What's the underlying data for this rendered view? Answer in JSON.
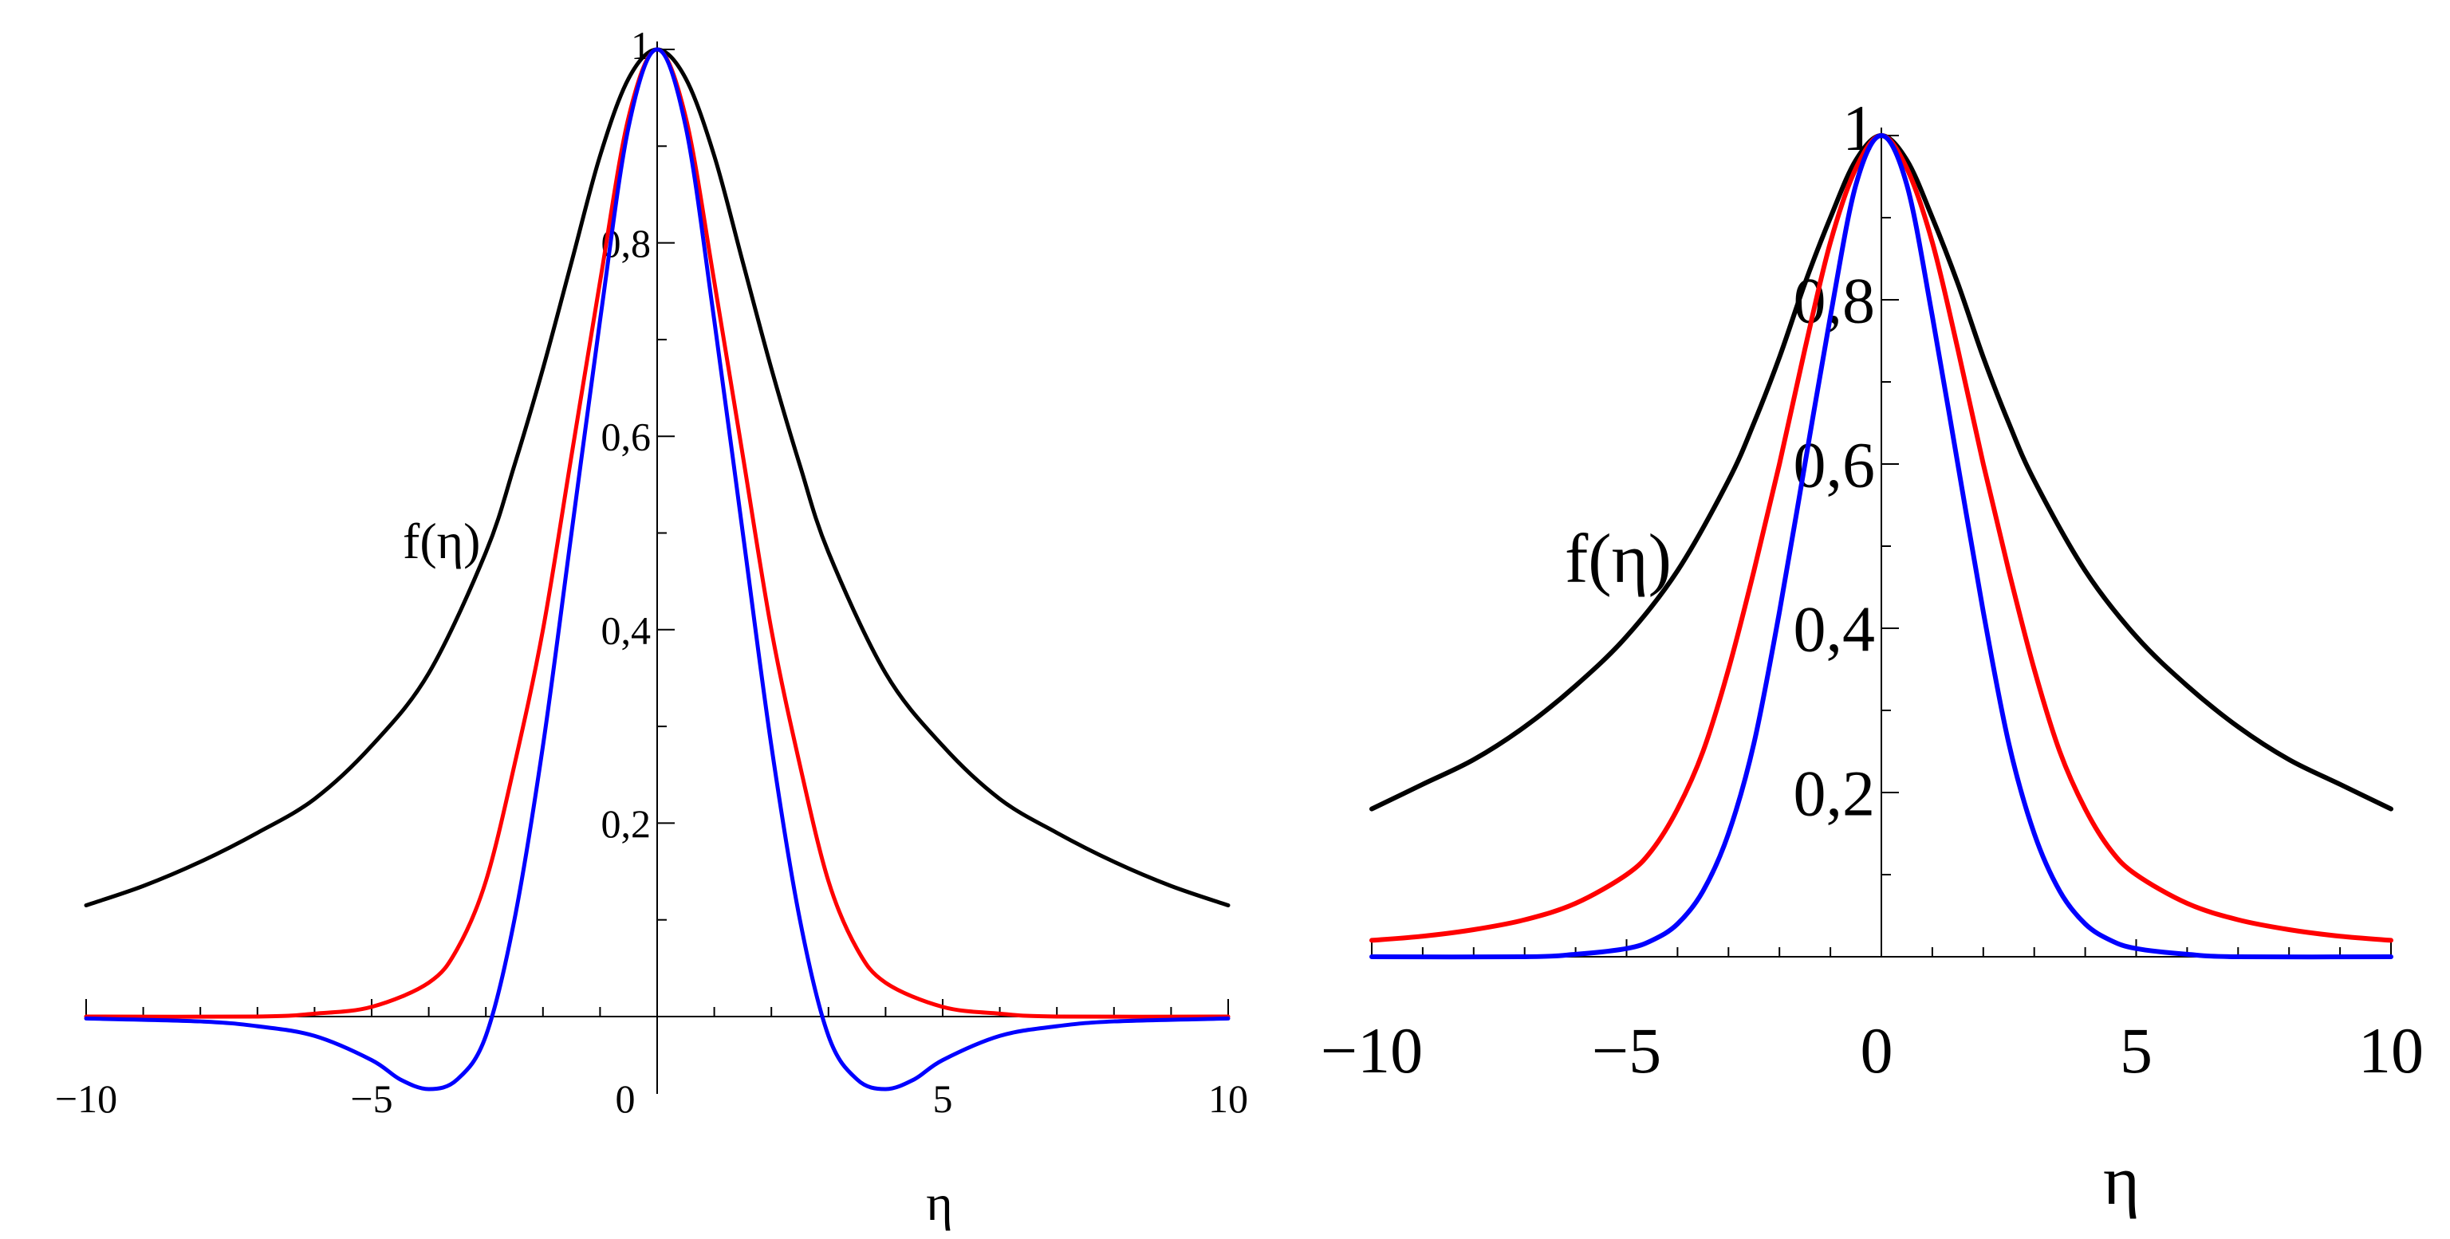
{
  "chart_data": [
    {
      "type": "line",
      "xlabel": "η",
      "ylabel": "f(η)",
      "xlim": [
        -10,
        10
      ],
      "ylim": [
        -0.08,
        1.0
      ],
      "x_ticks": [
        "−10",
        "−5",
        "0",
        "5",
        "10"
      ],
      "y_ticks": [
        "0,2",
        "0,4",
        "0,6",
        "0,8",
        "1"
      ],
      "series": [
        {
          "color": "#000000",
          "x": [
            -10,
            -9,
            -8,
            -7,
            -6,
            -5,
            -4,
            -3,
            -2.5,
            -2,
            -1.5,
            -1,
            -0.5,
            0,
            0.5,
            1,
            1.5,
            2,
            2.5,
            3,
            4,
            5,
            6,
            7,
            8,
            9,
            10
          ],
          "y": [
            0.115,
            0.135,
            0.16,
            0.19,
            0.225,
            0.28,
            0.355,
            0.48,
            0.57,
            0.67,
            0.78,
            0.89,
            0.97,
            1.0,
            0.97,
            0.89,
            0.78,
            0.67,
            0.57,
            0.48,
            0.355,
            0.28,
            0.225,
            0.19,
            0.16,
            0.135,
            0.115
          ]
        },
        {
          "color": "#ff0000",
          "x": [
            -10,
            -7,
            -6,
            -5,
            -4,
            -3.5,
            -3,
            -2.5,
            -2,
            -1.5,
            -1,
            -0.5,
            0,
            0.5,
            1,
            1.5,
            2,
            2.5,
            3,
            3.5,
            4,
            5,
            6,
            7,
            10
          ],
          "y": [
            0.0,
            0.0,
            0.003,
            0.01,
            0.035,
            0.07,
            0.14,
            0.26,
            0.4,
            0.58,
            0.76,
            0.93,
            1.0,
            0.93,
            0.76,
            0.58,
            0.4,
            0.26,
            0.14,
            0.07,
            0.035,
            0.01,
            0.003,
            0.0,
            0.0
          ]
        },
        {
          "color": "#0000ff",
          "x": [
            -10,
            -8,
            -7,
            -6,
            -5,
            -4.5,
            -4,
            -3.5,
            -3,
            -2.5,
            -2,
            -1.5,
            -1,
            -0.5,
            0,
            0.5,
            1,
            1.5,
            2,
            2.5,
            3,
            3.5,
            4,
            4.5,
            5,
            6,
            7,
            8,
            10
          ],
          "y": [
            -0.002,
            -0.005,
            -0.01,
            -0.02,
            -0.045,
            -0.065,
            -0.075,
            -0.065,
            -0.02,
            0.1,
            0.28,
            0.5,
            0.72,
            0.92,
            1.0,
            0.92,
            0.72,
            0.5,
            0.28,
            0.1,
            -0.02,
            -0.065,
            -0.075,
            -0.065,
            -0.045,
            -0.02,
            -0.01,
            -0.005,
            -0.002
          ]
        }
      ]
    },
    {
      "type": "line",
      "xlabel": "η",
      "ylabel": "f(η)",
      "xlim": [
        -10,
        10
      ],
      "ylim": [
        0,
        1.0
      ],
      "x_ticks": [
        "−10",
        "−5",
        "0",
        "5",
        "10"
      ],
      "y_ticks": [
        "0,2",
        "0,4",
        "0,6",
        "0,8",
        "1"
      ],
      "series": [
        {
          "color": "#000000",
          "x": [
            -10,
            -9,
            -8,
            -7,
            -6,
            -5,
            -4,
            -3,
            -2.5,
            -2,
            -1.5,
            -1,
            -0.5,
            0,
            0.5,
            1,
            1.5,
            2,
            2.5,
            3,
            4,
            5,
            6,
            7,
            8,
            9,
            10
          ],
          "y": [
            0.18,
            0.21,
            0.24,
            0.28,
            0.33,
            0.39,
            0.47,
            0.58,
            0.65,
            0.73,
            0.82,
            0.9,
            0.97,
            1.0,
            0.97,
            0.9,
            0.82,
            0.73,
            0.65,
            0.58,
            0.47,
            0.39,
            0.33,
            0.28,
            0.24,
            0.21,
            0.18
          ]
        },
        {
          "color": "#ff0000",
          "x": [
            -10,
            -9,
            -8,
            -7,
            -6,
            -5,
            -4.5,
            -4,
            -3.5,
            -3,
            -2.5,
            -2,
            -1.5,
            -1,
            -0.5,
            0,
            0.5,
            1,
            1.5,
            2,
            2.5,
            3,
            3.5,
            4,
            4.5,
            5,
            6,
            7,
            8,
            9,
            10
          ],
          "y": [
            0.02,
            0.025,
            0.033,
            0.045,
            0.065,
            0.1,
            0.13,
            0.18,
            0.25,
            0.35,
            0.47,
            0.6,
            0.74,
            0.87,
            0.96,
            1.0,
            0.96,
            0.87,
            0.74,
            0.6,
            0.47,
            0.35,
            0.25,
            0.18,
            0.13,
            0.1,
            0.065,
            0.045,
            0.033,
            0.025,
            0.02
          ]
        },
        {
          "color": "#0000ff",
          "x": [
            -10,
            -7,
            -6,
            -5,
            -4.5,
            -4,
            -3.5,
            -3,
            -2.5,
            -2,
            -1.5,
            -1,
            -0.5,
            0,
            0.5,
            1,
            1.5,
            2,
            2.5,
            3,
            3.5,
            4,
            4.5,
            5,
            6,
            7,
            10
          ],
          "y": [
            0.0,
            0.0,
            0.003,
            0.01,
            0.02,
            0.04,
            0.08,
            0.15,
            0.26,
            0.42,
            0.6,
            0.78,
            0.94,
            1.0,
            0.94,
            0.78,
            0.6,
            0.42,
            0.26,
            0.15,
            0.08,
            0.04,
            0.02,
            0.01,
            0.003,
            0.0,
            0.0
          ]
        }
      ]
    }
  ]
}
